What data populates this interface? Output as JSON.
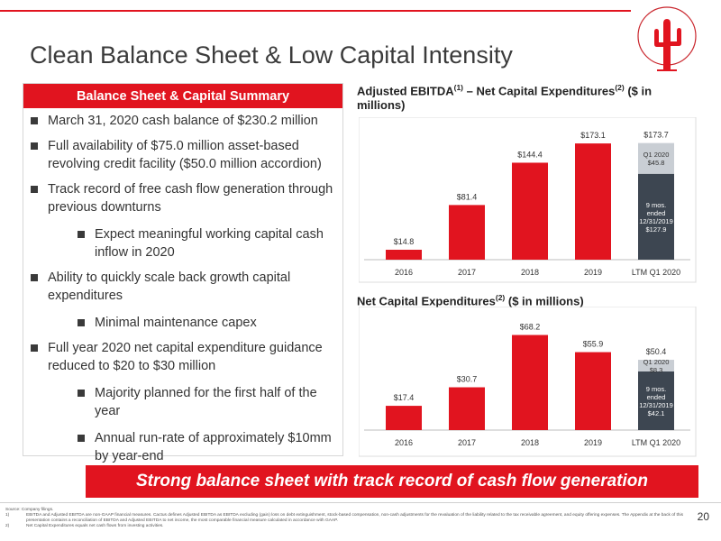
{
  "slide": {
    "title": "Clean Balance Sheet & Low Capital Intensity",
    "page_number": "20"
  },
  "summary": {
    "header": "Balance Sheet & Capital Summary",
    "bullets": [
      {
        "level": 1,
        "text": "March 31, 2020 cash balance of $230.2 million"
      },
      {
        "level": 1,
        "text": "Full availability of $75.0 million asset-based revolving credit facility ($50.0 million accordion)"
      },
      {
        "level": 1,
        "text": "Track record of free cash flow generation through previous downturns"
      },
      {
        "level": 2,
        "text": "Expect meaningful working capital cash inflow in 2020"
      },
      {
        "level": 1,
        "text": "Ability to quickly scale back growth capital expenditures"
      },
      {
        "level": 2,
        "text": "Minimal maintenance capex"
      },
      {
        "level": 1,
        "text": "Full year 2020 net capital expenditure guidance reduced to $20 to $30 million"
      },
      {
        "level": 2,
        "text": "Majority planned for the first half of the year"
      },
      {
        "level": 2,
        "text": "Annual run-rate of approximately $10mm by year-end"
      }
    ]
  },
  "chart_titles": {
    "ebitda": {
      "a": "Adjusted EBITDA",
      "sup1": "(1)",
      "b": " – Net Capital Expenditures",
      "sup2": "(2)",
      "c": " ($ in millions)"
    },
    "capex": {
      "a": "Net Capital Expenditures",
      "sup1": "(2)",
      "b": " ($ in millions)"
    }
  },
  "chart_data": [
    {
      "type": "bar",
      "title": "Adjusted EBITDA(1) – Net Capital Expenditures(2) ($ in millions)",
      "categories": [
        "2016",
        "2017",
        "2018",
        "2019",
        "LTM Q1 2020"
      ],
      "values": [
        14.8,
        81.4,
        144.4,
        173.1,
        173.7
      ],
      "labels": [
        "$14.8",
        "$81.4",
        "$144.4",
        "$173.1",
        "$173.7"
      ],
      "stacked_last": [
        {
          "name": "9 mos. ended 12/31/2019",
          "value": 127.9,
          "label": "$127.9",
          "text_lines": [
            "9 mos.",
            "ended",
            "12/31/2019"
          ]
        },
        {
          "name": "Q1 2020",
          "value": 45.8,
          "label": "$45.8",
          "text_lines": [
            "Q1 2020"
          ]
        }
      ],
      "ylim": [
        0,
        190
      ]
    },
    {
      "type": "bar",
      "title": "Net Capital Expenditures(2) ($ in millions)",
      "categories": [
        "2016",
        "2017",
        "2018",
        "2019",
        "LTM Q1 2020"
      ],
      "values": [
        17.4,
        30.7,
        68.2,
        55.9,
        50.4
      ],
      "labels": [
        "$17.4",
        "$30.7",
        "$68.2",
        "$55.9",
        "$50.4"
      ],
      "stacked_last": [
        {
          "name": "9 mos. ended 12/31/2019",
          "value": 42.1,
          "label": "$42.1",
          "text_lines": [
            "9 mos.",
            "ended",
            "12/31/2019"
          ]
        },
        {
          "name": "Q1 2020",
          "value": 8.3,
          "label": "$8.3",
          "text_lines": [
            "Q1 2020"
          ]
        }
      ],
      "ylim": [
        0,
        75
      ]
    }
  ],
  "banner": "Strong balance sheet with track record of cash flow generation",
  "footnotes": {
    "source": "Source: Company filings.",
    "notes": [
      {
        "num": "1)",
        "text": "EBITDA and Adjusted EBITDA are non-GAAP financial measures. Cactus defines Adjusted EBITDA as EBITDA excluding (gain) loss on debt extinguishment, stock-based compensation, non-cash adjustments for the revaluation of the liability related to the tax receivable agreement, and equity offering expenses. The Appendix at the back of this presentation contains a reconciliation of EBITDA and Adjusted EBITDA to net income, the most comparable financial measure calculated in accordance with GAAP."
      },
      {
        "num": "2)",
        "text": "Net Capital Expenditures equals net cash flows from investing activities."
      }
    ]
  },
  "colors": {
    "accent_red": "#e1141f",
    "dark_stack": "#3d4651",
    "light_stack": "#c9ced4"
  }
}
